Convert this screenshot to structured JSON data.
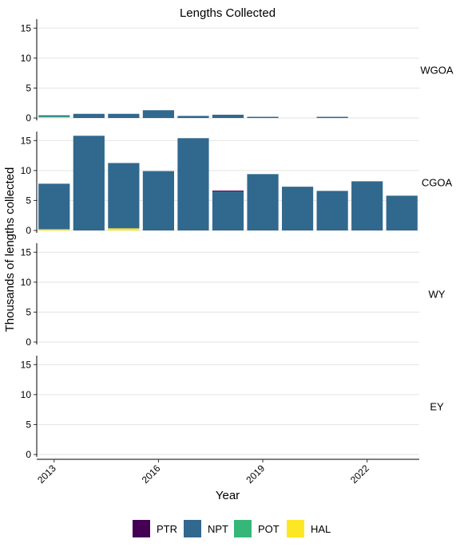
{
  "chart_data": {
    "type": "bar",
    "title": "Lengths Collected",
    "xlabel": "Year",
    "ylabel": "Thousands of lengths collected",
    "x_ticks": [
      "2013",
      "2016",
      "2019",
      "2022"
    ],
    "ylim": [
      0,
      16.5
    ],
    "y_ticks": [
      0,
      5,
      10,
      15
    ],
    "grid": "horizontal",
    "legend_position": "bottom",
    "categories": [
      2013,
      2014,
      2015,
      2016,
      2017,
      2018,
      2019,
      2020,
      2021,
      2022,
      2023
    ],
    "series_order": [
      "HAL",
      "POT",
      "NPT",
      "PTR"
    ],
    "legend": [
      {
        "name": "PTR",
        "color": "#440154"
      },
      {
        "name": "NPT",
        "color": "#31688E"
      },
      {
        "name": "POT",
        "color": "#35B779"
      },
      {
        "name": "HAL",
        "color": "#FDE725"
      }
    ],
    "panels": [
      {
        "name": "WGOA",
        "series": [
          {
            "name": "PTR",
            "values": [
              0,
              0,
              0,
              0,
              0,
              0,
              0,
              0,
              0,
              0,
              0
            ]
          },
          {
            "name": "NPT",
            "values": [
              0.2,
              0.7,
              0.7,
              1.3,
              0.35,
              0.55,
              0.2,
              0,
              0.2,
              0,
              0
            ]
          },
          {
            "name": "POT",
            "values": [
              0.1,
              0,
              0,
              0,
              0,
              0,
              0,
              0,
              0,
              0,
              0
            ]
          },
          {
            "name": "HAL",
            "values": [
              0.15,
              0,
              0,
              0,
              0,
              0,
              0,
              0,
              0,
              0,
              0
            ]
          }
        ]
      },
      {
        "name": "CGOA",
        "series": [
          {
            "name": "PTR",
            "values": [
              0,
              0,
              0,
              0,
              0,
              0.15,
              0,
              0,
              0,
              0,
              0
            ]
          },
          {
            "name": "NPT",
            "values": [
              7.6,
              15.8,
              10.9,
              9.9,
              15.4,
              6.5,
              9.4,
              7.3,
              6.6,
              8.2,
              5.8
            ]
          },
          {
            "name": "POT",
            "values": [
              0,
              0,
              0,
              0,
              0,
              0,
              0,
              0,
              0,
              0,
              0
            ]
          },
          {
            "name": "HAL",
            "values": [
              0.2,
              0,
              0.35,
              0,
              0,
              0,
              0,
              0,
              0,
              0,
              0
            ]
          }
        ]
      },
      {
        "name": "WY",
        "series": []
      },
      {
        "name": "EY",
        "series": []
      }
    ]
  }
}
